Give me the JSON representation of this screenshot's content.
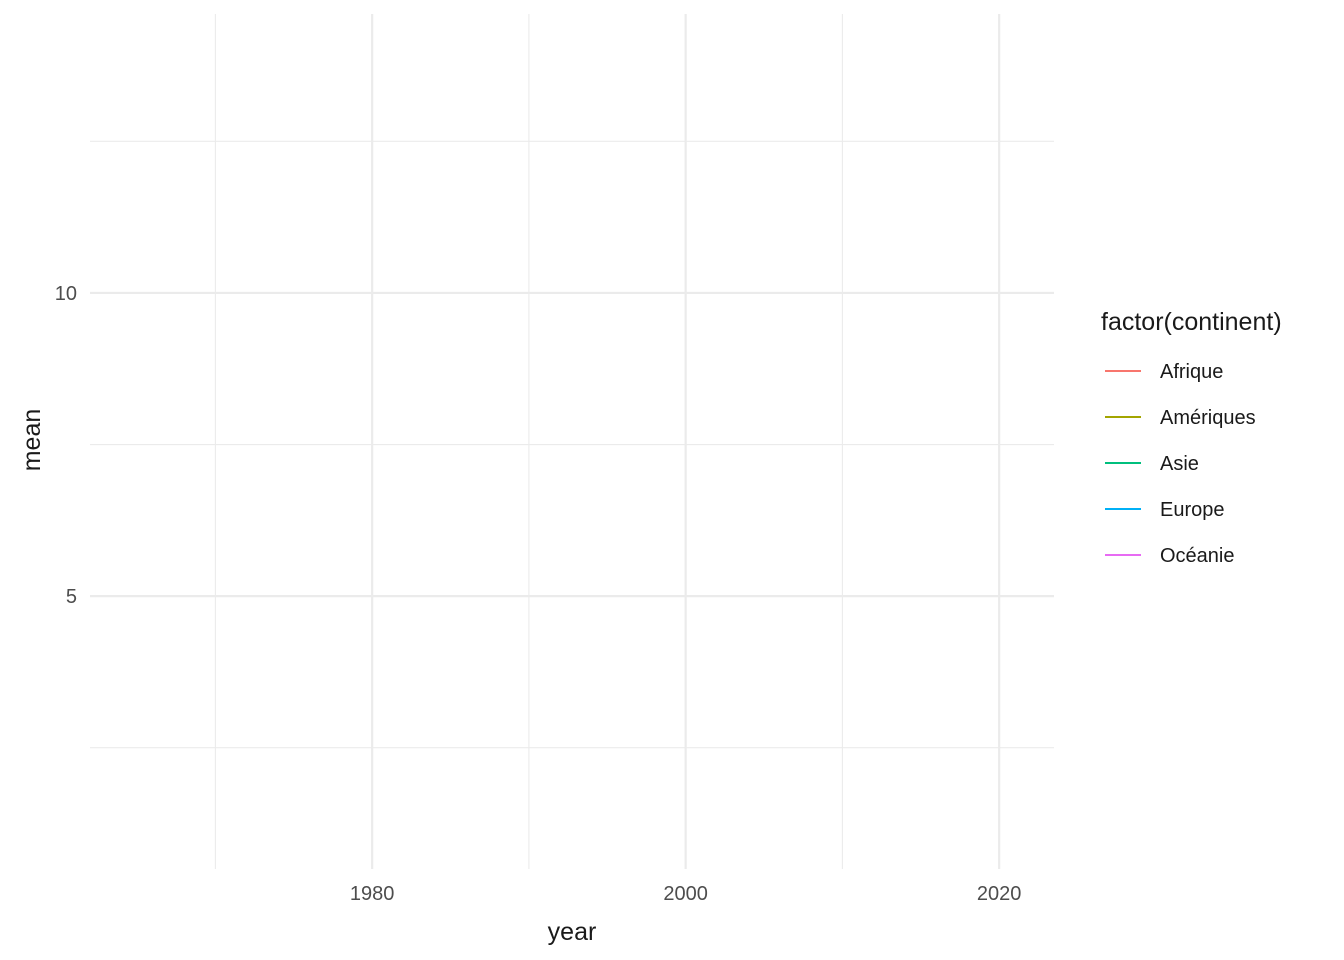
{
  "chart_data": {
    "type": "line",
    "xlabel": "year",
    "ylabel": "mean",
    "xlim": [
      1962,
      2023.5
    ],
    "ylim": [
      0.5,
      14.6
    ],
    "x_major_ticks": [
      1980,
      2000,
      2020
    ],
    "x_minor_ticks": [
      1970,
      1990,
      2010
    ],
    "x_tick_labels": [
      "1980",
      "2000",
      "2020"
    ],
    "y_major_ticks": [
      5,
      10
    ],
    "y_minor_ticks": [
      2.5,
      7.5,
      12.5
    ],
    "y_tick_labels": [
      "5",
      "10"
    ],
    "grid": true,
    "legend": {
      "title": "factor(continent)",
      "position": "right"
    },
    "series": [
      {
        "name": "Afrique",
        "color": "#F8766D",
        "values": []
      },
      {
        "name": "Amériques",
        "color": "#A3A500",
        "values": []
      },
      {
        "name": "Asie",
        "color": "#00BF7D",
        "values": []
      },
      {
        "name": "Europe",
        "color": "#00B0F6",
        "values": []
      },
      {
        "name": "Océanie",
        "color": "#E76BF3",
        "values": []
      }
    ]
  }
}
